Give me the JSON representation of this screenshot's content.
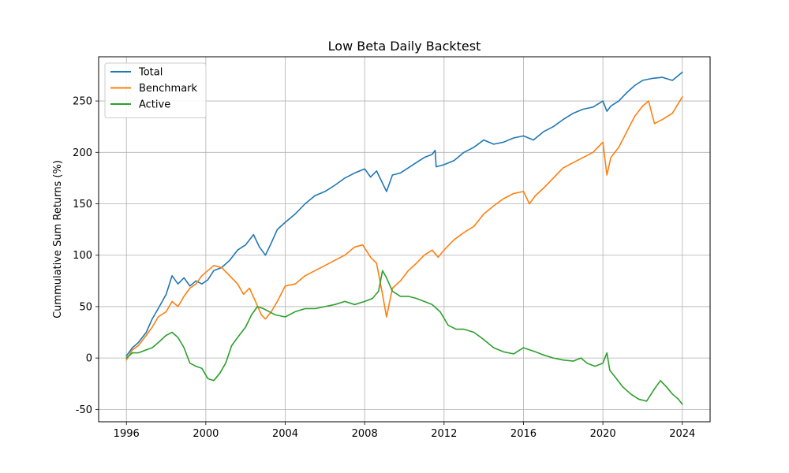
{
  "chart_data": {
    "type": "line",
    "title": "Low Beta Daily Backtest",
    "xlabel": "",
    "ylabel": "Cummulative Sum Returns (%)",
    "xlim": [
      1994.6,
      2025.4
    ],
    "ylim": [
      -62,
      293
    ],
    "xticks": [
      1996,
      2000,
      2004,
      2008,
      2012,
      2016,
      2020,
      2024
    ],
    "yticks": [
      -50,
      0,
      50,
      100,
      150,
      200,
      250
    ],
    "grid": true,
    "legend_position": "top-left",
    "series": [
      {
        "name": "Total",
        "color": "#1f77b4",
        "x": [
          1996.0,
          1996.3,
          1996.6,
          1997.0,
          1997.3,
          1997.6,
          1998.0,
          1998.3,
          1998.6,
          1998.9,
          1999.2,
          1999.5,
          1999.8,
          2000.1,
          2000.4,
          2000.8,
          2001.2,
          2001.6,
          2002.0,
          2002.4,
          2002.7,
          2003.0,
          2003.3,
          2003.6,
          2004.0,
          2004.5,
          2005.0,
          2005.5,
          2006.0,
          2006.5,
          2007.0,
          2007.5,
          2008.0,
          2008.3,
          2008.6,
          2008.9,
          2009.1,
          2009.4,
          2009.8,
          2010.2,
          2010.6,
          2011.0,
          2011.4,
          2011.55,
          2011.6,
          2012.0,
          2012.5,
          2013.0,
          2013.5,
          2014.0,
          2014.5,
          2015.0,
          2015.5,
          2016.0,
          2016.5,
          2017.0,
          2017.5,
          2018.0,
          2018.5,
          2019.0,
          2019.5,
          2020.0,
          2020.2,
          2020.4,
          2020.8,
          2021.2,
          2021.6,
          2022.0,
          2022.5,
          2023.0,
          2023.5,
          2024.0
        ],
        "values": [
          2,
          10,
          15,
          25,
          38,
          48,
          62,
          80,
          72,
          78,
          70,
          75,
          72,
          76,
          85,
          88,
          95,
          105,
          110,
          120,
          108,
          100,
          112,
          125,
          132,
          140,
          150,
          158,
          162,
          168,
          175,
          180,
          184,
          176,
          182,
          170,
          162,
          178,
          180,
          185,
          190,
          195,
          198,
          202,
          186,
          188,
          192,
          200,
          205,
          212,
          208,
          210,
          214,
          216,
          212,
          220,
          225,
          232,
          238,
          242,
          244,
          250,
          240,
          245,
          250,
          258,
          265,
          270,
          272,
          273,
          270,
          278
        ]
      },
      {
        "name": "Benchmark",
        "color": "#ff7f0e",
        "x": [
          1996.0,
          1996.3,
          1996.6,
          1997.0,
          1997.3,
          1997.6,
          1998.0,
          1998.3,
          1998.6,
          1998.9,
          1999.2,
          1999.5,
          1999.8,
          2000.1,
          2000.4,
          2000.8,
          2001.2,
          2001.6,
          2001.9,
          2002.2,
          2002.5,
          2002.8,
          2003.0,
          2003.3,
          2003.6,
          2004.0,
          2004.5,
          2005.0,
          2005.5,
          2006.0,
          2006.5,
          2007.0,
          2007.5,
          2007.9,
          2008.3,
          2008.6,
          2008.9,
          2009.1,
          2009.4,
          2009.8,
          2010.2,
          2010.6,
          2011.0,
          2011.4,
          2011.7,
          2012.0,
          2012.5,
          2013.0,
          2013.5,
          2014.0,
          2014.5,
          2015.0,
          2015.5,
          2016.0,
          2016.3,
          2016.6,
          2017.0,
          2017.5,
          2018.0,
          2018.5,
          2019.0,
          2019.5,
          2020.0,
          2020.2,
          2020.4,
          2020.8,
          2021.2,
          2021.6,
          2022.0,
          2022.3,
          2022.6,
          2023.0,
          2023.5,
          2024.0
        ],
        "values": [
          -2,
          8,
          12,
          22,
          30,
          40,
          45,
          55,
          50,
          60,
          68,
          72,
          80,
          85,
          90,
          88,
          80,
          72,
          62,
          68,
          55,
          42,
          38,
          45,
          55,
          70,
          72,
          80,
          85,
          90,
          95,
          100,
          108,
          110,
          98,
          92,
          62,
          40,
          68,
          75,
          85,
          92,
          100,
          105,
          98,
          105,
          115,
          122,
          128,
          140,
          148,
          155,
          160,
          162,
          150,
          158,
          165,
          175,
          185,
          190,
          195,
          200,
          210,
          178,
          195,
          205,
          220,
          235,
          245,
          250,
          228,
          232,
          238,
          254
        ]
      },
      {
        "name": "Active",
        "color": "#2ca02c",
        "x": [
          1996.0,
          1996.3,
          1996.6,
          1997.0,
          1997.3,
          1997.6,
          1998.0,
          1998.3,
          1998.6,
          1998.9,
          1999.2,
          1999.5,
          1999.8,
          2000.1,
          2000.4,
          2000.7,
          2001.0,
          2001.3,
          2001.6,
          2002.0,
          2002.3,
          2002.6,
          2002.9,
          2003.2,
          2003.5,
          2004.0,
          2004.5,
          2005.0,
          2005.5,
          2006.0,
          2006.5,
          2007.0,
          2007.5,
          2008.0,
          2008.4,
          2008.7,
          2008.9,
          2009.1,
          2009.4,
          2009.8,
          2010.2,
          2010.6,
          2011.0,
          2011.4,
          2011.8,
          2012.2,
          2012.6,
          2013.0,
          2013.5,
          2014.0,
          2014.5,
          2015.0,
          2015.5,
          2016.0,
          2016.3,
          2016.6,
          2017.0,
          2017.5,
          2018.0,
          2018.5,
          2018.9,
          2019.2,
          2019.6,
          2020.0,
          2020.2,
          2020.35,
          2020.6,
          2021.0,
          2021.4,
          2021.8,
          2022.2,
          2022.6,
          2022.9,
          2023.2,
          2023.5,
          2023.8,
          2024.0
        ],
        "values": [
          0,
          5,
          5,
          8,
          10,
          15,
          22,
          25,
          20,
          10,
          -5,
          -8,
          -10,
          -20,
          -22,
          -15,
          -5,
          12,
          20,
          30,
          42,
          50,
          48,
          45,
          42,
          40,
          45,
          48,
          48,
          50,
          52,
          55,
          52,
          55,
          58,
          65,
          85,
          78,
          65,
          60,
          60,
          58,
          55,
          52,
          45,
          32,
          28,
          28,
          25,
          18,
          10,
          6,
          4,
          10,
          8,
          6,
          3,
          0,
          -2,
          -3,
          0,
          -5,
          -8,
          -5,
          5,
          -12,
          -18,
          -28,
          -35,
          -40,
          -42,
          -30,
          -22,
          -28,
          -35,
          -40,
          -45
        ]
      }
    ]
  }
}
